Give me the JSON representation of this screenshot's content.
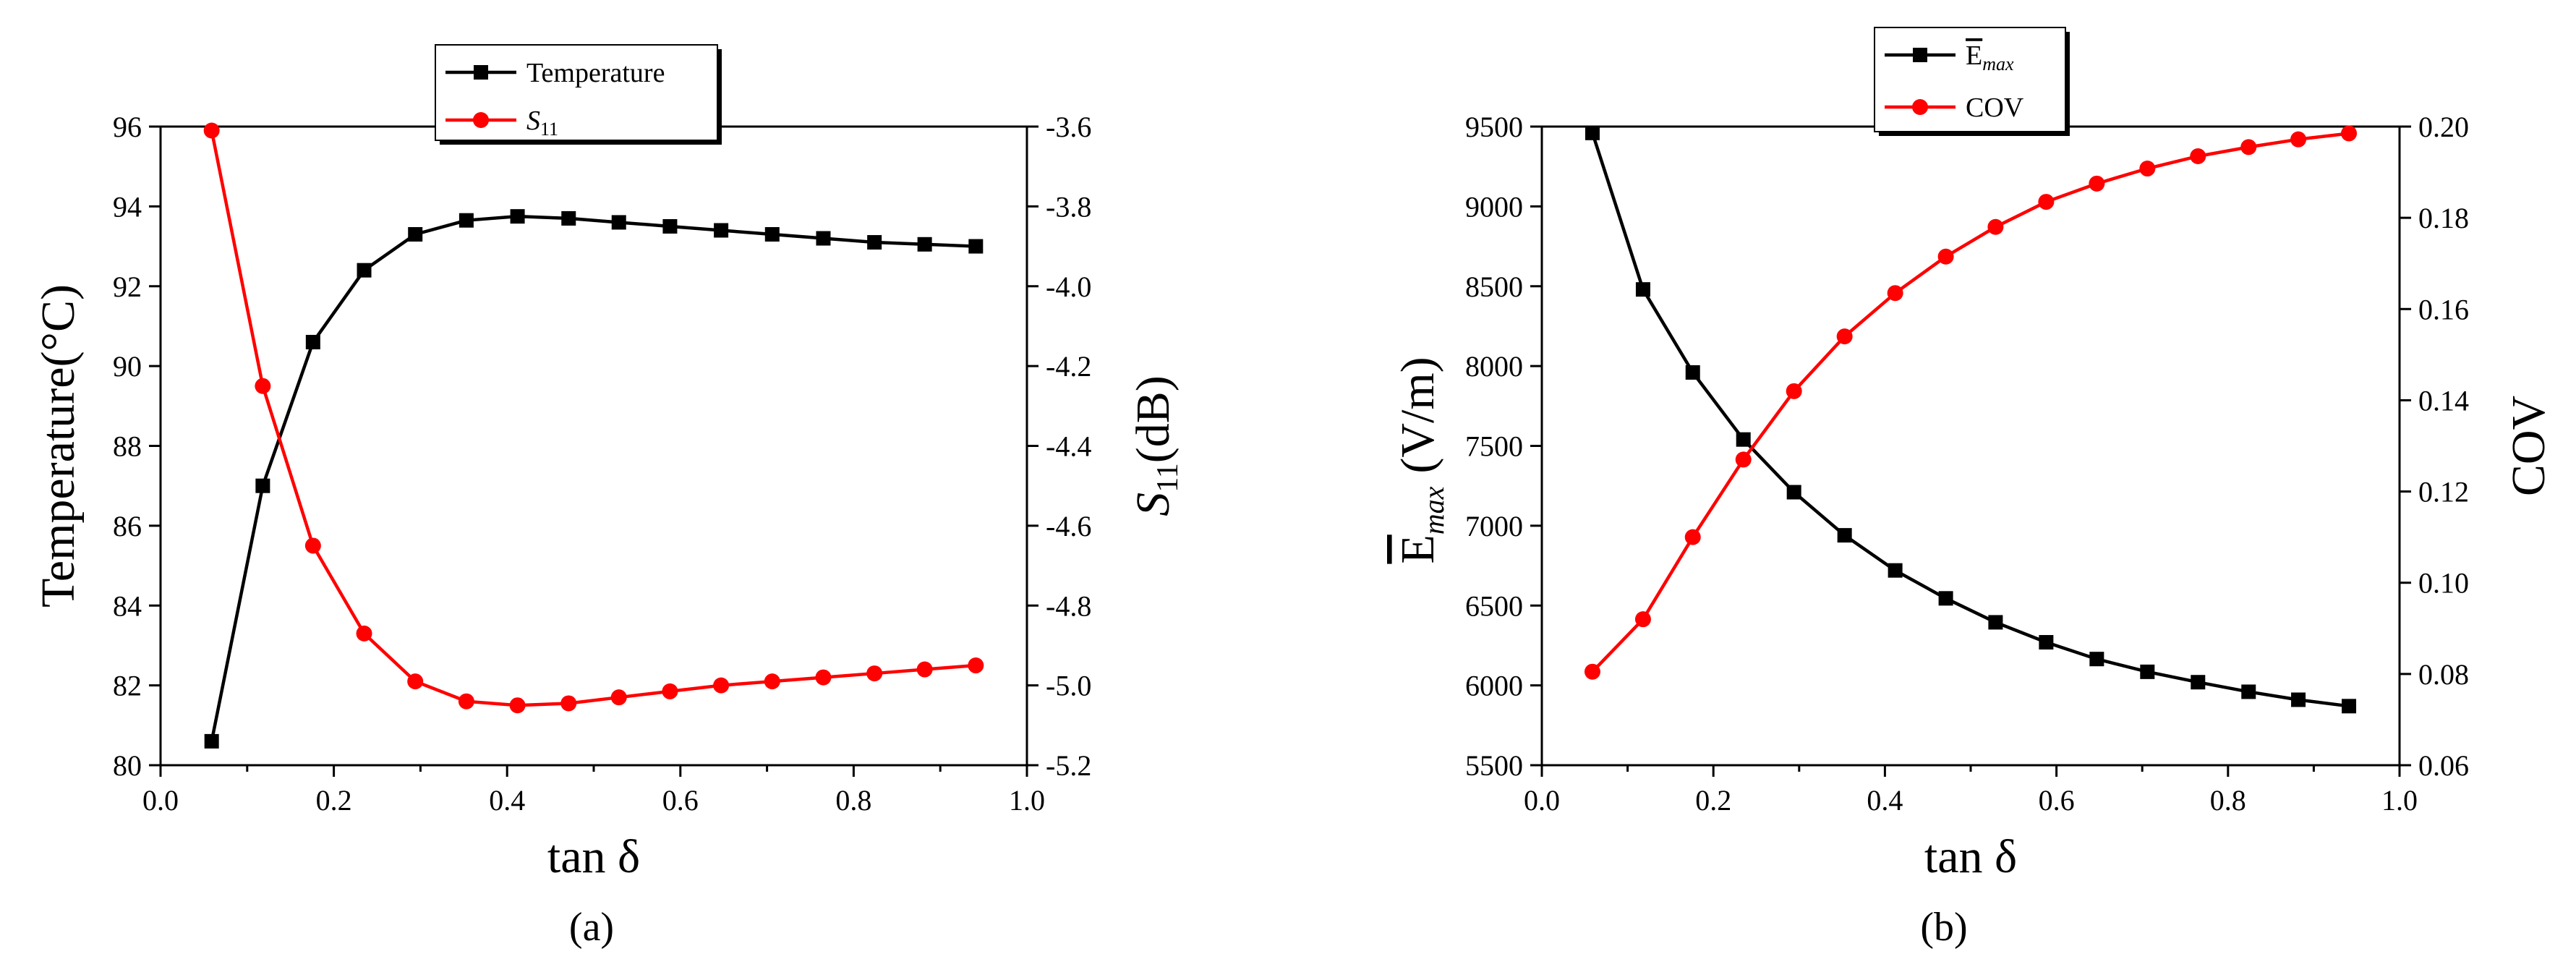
{
  "chart_data": [
    {
      "type": "line",
      "panel_label": "(a)",
      "xlabel": "tan δ",
      "xlim": [
        0.0,
        1.0
      ],
      "xticks": [
        "0.0",
        "0.2",
        "0.4",
        "0.6",
        "0.8",
        "1.0"
      ],
      "ylabel_left": "Temperature(°C)",
      "ylim_left": [
        80,
        96
      ],
      "yticks_left": [
        "80",
        "82",
        "84",
        "86",
        "88",
        "90",
        "92",
        "94",
        "96"
      ],
      "ylabel_right": "S11(dB)",
      "ylabel_right_main": "S",
      "ylabel_right_sub": "11",
      "ylabel_right_rest": "(dB)",
      "ylim_right": [
        -5.2,
        -3.6
      ],
      "yticks_right": [
        "-5.2",
        "-5.0",
        "-4.8",
        "-4.6",
        "-4.4",
        "-4.2",
        "-4.0",
        "-3.8",
        "-3.6"
      ],
      "legend_position": "top-center",
      "x": [
        0.059,
        0.118,
        0.176,
        0.235,
        0.294,
        0.353,
        0.412,
        0.471,
        0.529,
        0.588,
        0.647,
        0.706,
        0.765,
        0.824,
        0.882,
        0.941
      ],
      "series": [
        {
          "name": "Temperature",
          "axis": "left",
          "color": "#000000",
          "marker": "square",
          "values": [
            80.6,
            87.0,
            90.6,
            92.4,
            93.3,
            93.65,
            93.75,
            93.7,
            93.6,
            93.5,
            93.4,
            93.3,
            93.2,
            93.1,
            93.05,
            93.0
          ]
        },
        {
          "name": "S11",
          "name_main": "S",
          "name_sub": "11",
          "axis": "right",
          "color": "#ff0000",
          "marker": "circle",
          "values": [
            -3.61,
            -4.25,
            -4.65,
            -4.87,
            -4.99,
            -5.04,
            -5.05,
            -5.045,
            -5.03,
            -5.015,
            -5.0,
            -4.99,
            -4.98,
            -4.97,
            -4.96,
            -4.95
          ]
        }
      ]
    },
    {
      "type": "line",
      "panel_label": "(b)",
      "xlabel": "tan δ",
      "xlim": [
        0.0,
        1.0
      ],
      "xticks": [
        "0.0",
        "0.2",
        "0.4",
        "0.6",
        "0.8",
        "1.0"
      ],
      "ylabel_left": "|E|max (V/m)",
      "ylabel_left_main": "E",
      "ylabel_left_sub": "max",
      "ylabel_left_unit": "(V/m)",
      "ylim_left": [
        5500,
        9500
      ],
      "yticks_left": [
        "5500",
        "6000",
        "6500",
        "7000",
        "7500",
        "8000",
        "8500",
        "9000",
        "9500"
      ],
      "ylabel_right": "COV",
      "ylim_right": [
        0.06,
        0.2
      ],
      "yticks_right": [
        "0.06",
        "0.08",
        "0.10",
        "0.12",
        "0.14",
        "0.16",
        "0.18",
        "0.20"
      ],
      "legend_position": "top-center",
      "x": [
        0.059,
        0.118,
        0.176,
        0.235,
        0.294,
        0.353,
        0.412,
        0.471,
        0.529,
        0.588,
        0.647,
        0.706,
        0.765,
        0.824,
        0.882,
        0.941
      ],
      "series": [
        {
          "name": "|E|max",
          "name_main": "E",
          "name_sub": "max",
          "axis": "left",
          "color": "#000000",
          "marker": "square",
          "values": [
            9460,
            8480,
            7960,
            7540,
            7210,
            6940,
            6720,
            6545,
            6395,
            6270,
            6165,
            6085,
            6020,
            5960,
            5910,
            5870
          ]
        },
        {
          "name": "COV",
          "axis": "right",
          "color": "#ff0000",
          "marker": "circle",
          "values": [
            0.0805,
            0.092,
            0.11,
            0.127,
            0.142,
            0.154,
            0.1635,
            0.1715,
            0.178,
            0.1835,
            0.1875,
            0.1908,
            0.1935,
            0.1955,
            0.1972,
            0.1985
          ]
        }
      ]
    }
  ]
}
